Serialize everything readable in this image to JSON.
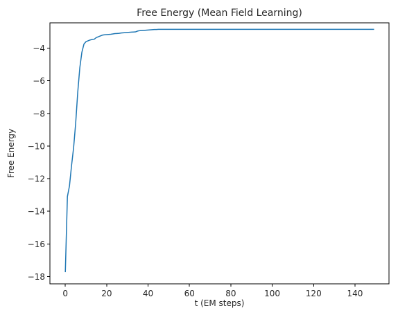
{
  "chart_data": {
    "type": "line",
    "title": "Free Energy (Mean Field Learning)",
    "xlabel": "t (EM steps)",
    "ylabel": "Free Energy",
    "xlim": [
      -7.45,
      156.45
    ],
    "ylim": [
      -18.45,
      -2.45
    ],
    "xticks": [
      0,
      20,
      40,
      60,
      80,
      100,
      120,
      140
    ],
    "yticks": [
      -18,
      -16,
      -14,
      -12,
      -10,
      -8,
      -6,
      -4
    ],
    "xtick_labels": [
      "0",
      "20",
      "40",
      "60",
      "80",
      "100",
      "120",
      "140"
    ],
    "ytick_labels": [
      "−18",
      "−16",
      "−14",
      "−12",
      "−10",
      "−8",
      "−6",
      "−4"
    ],
    "grid": false,
    "series": [
      {
        "name": "Free Energy",
        "color": "#1f77b4",
        "x": [
          0,
          1,
          2,
          3,
          4,
          5,
          6,
          7,
          8,
          9,
          10,
          11,
          12,
          13,
          14,
          15,
          16,
          17,
          18,
          19,
          20,
          21,
          22,
          23,
          24,
          25,
          26,
          27,
          28,
          29,
          30,
          31,
          32,
          33,
          34,
          35,
          36,
          37,
          38,
          39,
          40,
          41,
          42,
          43,
          44,
          45,
          46,
          47,
          48,
          50,
          60,
          70,
          80,
          90,
          100,
          110,
          120,
          130,
          140,
          149
        ],
        "y": [
          -17.7,
          -13.1,
          -12.45,
          -11.2,
          -10.1,
          -8.6,
          -6.7,
          -5.2,
          -4.25,
          -3.75,
          -3.6,
          -3.55,
          -3.5,
          -3.47,
          -3.45,
          -3.35,
          -3.3,
          -3.25,
          -3.2,
          -3.18,
          -3.17,
          -3.16,
          -3.15,
          -3.13,
          -3.11,
          -3.1,
          -3.09,
          -3.07,
          -3.06,
          -3.05,
          -3.04,
          -3.03,
          -3.02,
          -3.01,
          -3.0,
          -2.95,
          -2.93,
          -2.92,
          -2.91,
          -2.9,
          -2.89,
          -2.88,
          -2.87,
          -2.86,
          -2.86,
          -2.85,
          -2.85,
          -2.85,
          -2.85,
          -2.85,
          -2.85,
          -2.85,
          -2.85,
          -2.85,
          -2.85,
          -2.85,
          -2.85,
          -2.85,
          -2.85,
          -2.85
        ]
      }
    ]
  }
}
